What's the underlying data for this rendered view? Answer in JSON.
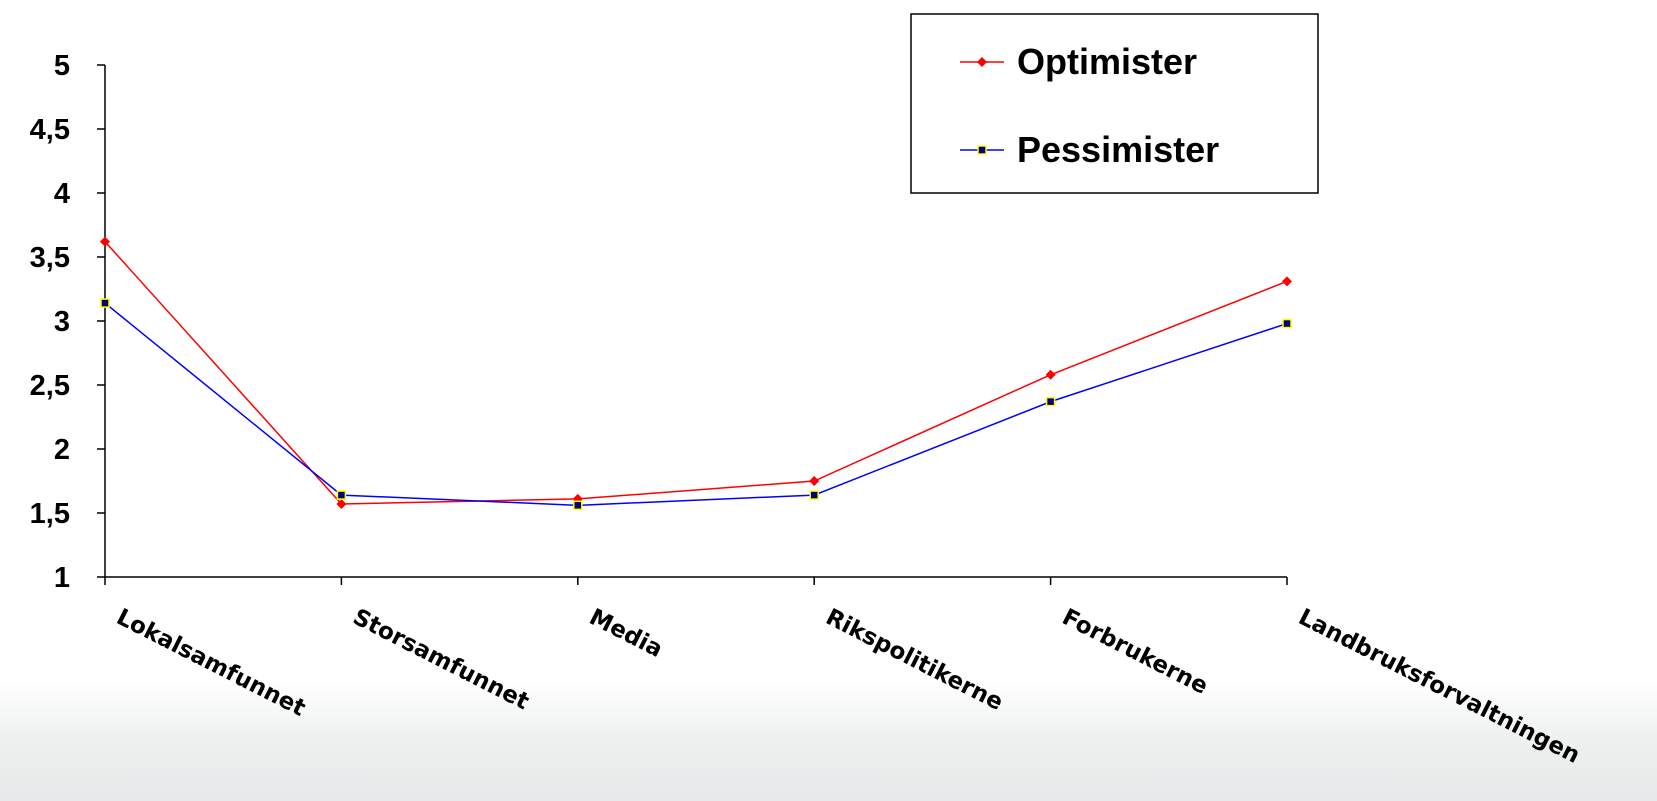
{
  "chart_data": {
    "type": "line",
    "categories": [
      "Lokalsamfunnet",
      "Storsamfunnet",
      "Media",
      "Rikspolitikerne",
      "Forbrukerne",
      "Landbruksforvaltningen"
    ],
    "series": [
      {
        "name": "Optimister",
        "values": [
          3.62,
          1.57,
          1.61,
          1.75,
          2.58,
          3.31
        ],
        "color": "#ff0000",
        "marker": "diamond",
        "marker_color": "#ff0000"
      },
      {
        "name": "Pessimister",
        "values": [
          3.14,
          1.64,
          1.56,
          1.64,
          2.37,
          2.98
        ],
        "color": "#0000ff",
        "marker": "square",
        "marker_color": "#000080",
        "marker_outline": "#ffff00"
      }
    ],
    "y_ticks": [
      "1",
      "1,5",
      "2",
      "2,5",
      "3",
      "3,5",
      "4",
      "4,5",
      "5"
    ],
    "y_tick_values": [
      1,
      1.5,
      2,
      2.5,
      3,
      3.5,
      4,
      4.5,
      5
    ],
    "ylim": [
      1,
      5
    ],
    "title": "",
    "xlabel": "",
    "ylabel": "",
    "grid": false,
    "legend_position": "top-right"
  }
}
